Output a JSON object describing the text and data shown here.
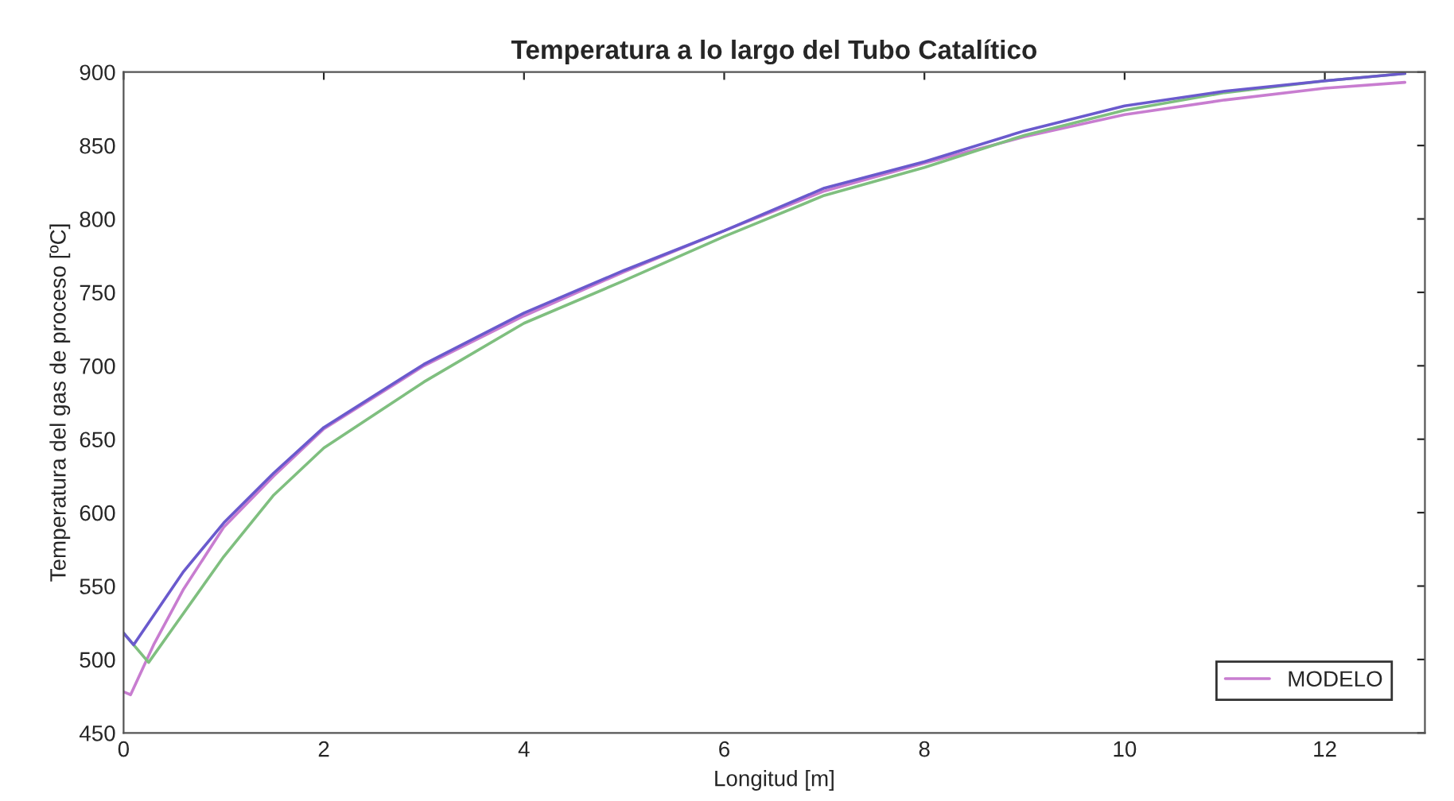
{
  "chart_data": {
    "type": "line",
    "title": "Temperatura a lo largo del Tubo Catalítico",
    "xlabel": "Longitud [m]",
    "ylabel": "Temperatura del gas de proceso [ºC]",
    "xlim": [
      0,
      13
    ],
    "xticks": [
      0,
      2,
      4,
      6,
      8,
      10,
      12
    ],
    "ylim": [
      450,
      900
    ],
    "yticks": [
      450,
      500,
      550,
      600,
      650,
      700,
      750,
      800,
      850,
      900
    ],
    "grid": false,
    "legend": "bottom right",
    "marker": "none",
    "line_style": "solid",
    "series": [
      {
        "name": "MODELO",
        "color": "#c87dd0",
        "x": [
          0,
          0.07,
          0.3,
          0.6,
          1,
          1.5,
          2,
          3,
          4,
          5,
          6,
          7,
          8,
          9,
          10,
          11,
          12,
          12.8
        ],
        "values": [
          478,
          476,
          510,
          548,
          590,
          625,
          657,
          700,
          734,
          764,
          792,
          819,
          838,
          856,
          871,
          881,
          889,
          893
        ]
      },
      {
        "color": "#7fbf7f",
        "x": [
          0,
          0.25,
          0.5,
          1,
          1.5,
          2,
          3,
          4,
          5,
          6,
          7,
          8,
          9,
          10,
          11,
          12,
          12.8
        ],
        "values": [
          518,
          498,
          522,
          570,
          612,
          644,
          689,
          729,
          758,
          788,
          816,
          835,
          857,
          874,
          886,
          894,
          899
        ]
      },
      {
        "color": "#6a5acd",
        "x": [
          0,
          0.1,
          0.3,
          0.6,
          1,
          1.5,
          2,
          3,
          4,
          5,
          6,
          7,
          8,
          9,
          10,
          11,
          12,
          12.8
        ],
        "values": [
          518,
          510,
          530,
          560,
          593,
          627,
          658,
          701,
          736,
          765,
          792,
          821,
          839,
          860,
          877,
          887,
          894,
          899
        ]
      }
    ]
  }
}
